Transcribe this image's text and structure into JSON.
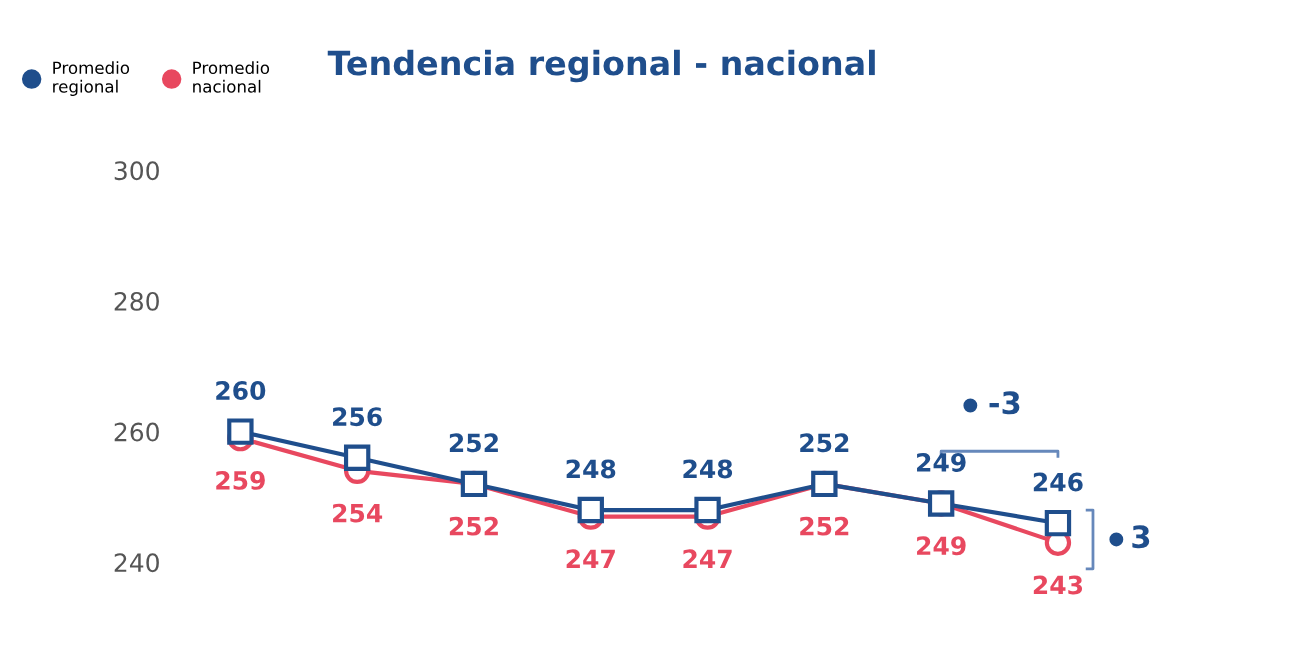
{
  "chart_data": {
    "type": "line",
    "title": "Tendencia regional - nacional",
    "categories": [
      null,
      null,
      null,
      null,
      null,
      null,
      null,
      null
    ],
    "series": [
      {
        "name": "Promedio regional",
        "color": "#1f4e8c",
        "marker": "square",
        "values": [
          260,
          256,
          252,
          248,
          248,
          252,
          249,
          246
        ]
      },
      {
        "name": "Promedio nacional",
        "color": "#e8485f",
        "marker": "circle",
        "values": [
          259,
          254,
          252,
          247,
          247,
          252,
          249,
          243
        ]
      }
    ],
    "ylim": [
      240,
      300
    ],
    "yticks": [
      240,
      260,
      280,
      300
    ],
    "data_labels": true,
    "legend": "top left",
    "grid": false,
    "tick_labels": "y",
    "annotations": [
      "-3",
      "3"
    ]
  }
}
